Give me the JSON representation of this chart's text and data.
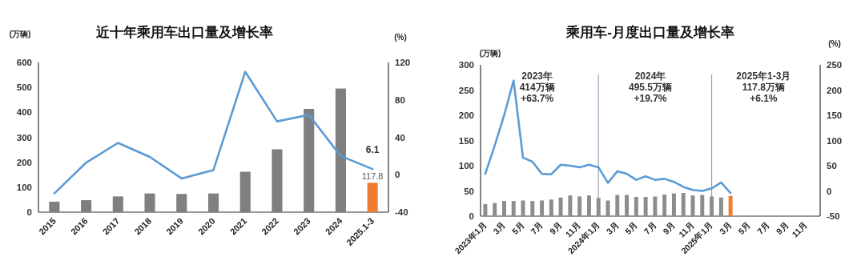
{
  "chart_data": [
    {
      "type": "bar",
      "title": "近十年乘用车出口量及增长率",
      "ylabel": "(万辆)",
      "y2label": "(%)",
      "categories": [
        "2015",
        "2016",
        "2017",
        "2018",
        "2019",
        "2020",
        "2021",
        "2022",
        "2023",
        "2024",
        "2025.1-3"
      ],
      "ylim": [
        0,
        600
      ],
      "yticks": [
        0,
        100,
        200,
        300,
        400,
        500,
        600
      ],
      "y2lim": [
        -40,
        120
      ],
      "y2ticks": [
        -40,
        0,
        40,
        80,
        120
      ],
      "series": [
        {
          "colors": [
            "#7f7f7f",
            "#7f7f7f",
            "#7f7f7f",
            "#7f7f7f",
            "#7f7f7f",
            "#7f7f7f",
            "#7f7f7f",
            "#7f7f7f",
            "#7f7f7f",
            "#7f7f7f",
            "#ed7d31"
          ],
          "values": [
            42,
            48,
            63,
            75,
            73,
            75,
            162,
            252,
            414,
            495.5,
            117.8
          ],
          "value_labels": [
            null,
            null,
            null,
            null,
            null,
            null,
            null,
            null,
            null,
            null,
            "117.8"
          ]
        },
        {
          "type": "line",
          "axis": "y2",
          "color": "#5b9bd5",
          "values": [
            -20,
            13,
            34,
            19,
            -4,
            5,
            110,
            57,
            64,
            20,
            6.1
          ],
          "value_labels": [
            null,
            null,
            null,
            null,
            null,
            null,
            null,
            null,
            null,
            null,
            "6.1"
          ]
        }
      ]
    },
    {
      "type": "bar",
      "title": "乘用车-月度出口量及增长率",
      "ylabel": "(万辆)",
      "y2label": "(%)",
      "categories": [
        "2023年1月",
        null,
        "3月",
        null,
        "5月",
        null,
        "7月",
        null,
        "9月",
        null,
        "11月",
        null,
        "2024年1月",
        null,
        "3月",
        null,
        "5月",
        null,
        "7月",
        null,
        "9月",
        null,
        "11月",
        null,
        "2025年1月",
        null,
        "3月",
        null,
        "5月",
        null,
        "7月",
        null,
        "9月",
        null,
        "11月",
        null
      ],
      "ylim": [
        0,
        300
      ],
      "yticks": [
        0,
        50,
        100,
        150,
        200,
        250,
        300
      ],
      "y2lim": [
        -50,
        250
      ],
      "y2ticks": [
        -50,
        0,
        50,
        100,
        150,
        200,
        250
      ],
      "series": [
        {
          "colors": [
            "#8c8c8c",
            "#8c8c8c",
            "#8c8c8c",
            "#8c8c8c",
            "#8c8c8c",
            "#8c8c8c",
            "#8c8c8c",
            "#8c8c8c",
            "#8c8c8c",
            "#8c8c8c",
            "#8c8c8c",
            "#8c8c8c",
            "#8c8c8c",
            "#8c8c8c",
            "#8c8c8c",
            "#8c8c8c",
            "#8c8c8c",
            "#8c8c8c",
            "#8c8c8c",
            "#8c8c8c",
            "#8c8c8c",
            "#8c8c8c",
            "#8c8c8c",
            "#8c8c8c",
            "#8c8c8c",
            "#8c8c8c",
            "#ed7d31",
            null,
            null,
            null,
            null,
            null,
            null,
            null,
            null,
            null
          ],
          "values": [
            24,
            26,
            30,
            30,
            31,
            30,
            31,
            33,
            37,
            41,
            39,
            41,
            36,
            31,
            42,
            42,
            38,
            38,
            39,
            43,
            45,
            46,
            41,
            42,
            39,
            37,
            40,
            null,
            null,
            null,
            null,
            null,
            null,
            null,
            null,
            null
          ]
        },
        {
          "type": "line",
          "axis": "y2",
          "color": "#5b9bd5",
          "values": [
            34,
            90,
            150,
            219,
            66,
            58,
            34,
            33,
            52,
            50,
            47,
            52,
            47,
            16,
            39,
            34,
            22,
            29,
            22,
            24,
            18,
            8,
            2,
            0,
            5,
            17,
            -4,
            null,
            null,
            null,
            null,
            null,
            null,
            null,
            null,
            null
          ]
        }
      ],
      "ref_lines": [
        {
          "axis": "x",
          "value": "2024年1月",
          "color": "#8fa3b8"
        },
        {
          "axis": "x",
          "value": "2025年1月",
          "color": "#8fa3b8"
        }
      ],
      "annotations": [
        "2023年\n414万辆\n+63.7%",
        "2024年\n495.5万辆\n+19.7%",
        "2025年1-3月\n117.8万辆\n+6.1%"
      ]
    }
  ]
}
